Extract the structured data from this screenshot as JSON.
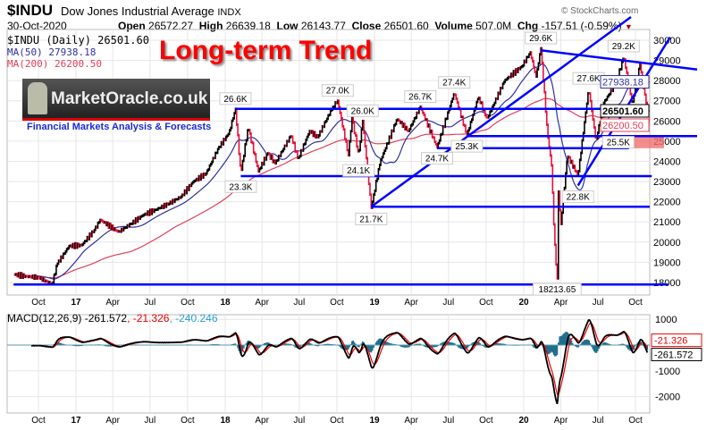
{
  "header": {
    "symbol": "$INDU",
    "name": "Dow Jones Industrial Average",
    "exchange": "INDX",
    "date": "30-Oct-2020",
    "open_label": "Open",
    "open": "26572.27",
    "high_label": "High",
    "high": "26639.18",
    "low_label": "Low",
    "low": "26143.77",
    "close_label": "Close",
    "close": "26501.60",
    "volume_label": "Volume",
    "volume": "507.0M",
    "chg_label": "Chg",
    "chg": "-157.51 (-0.59%)",
    "copyright": "© StockCharts.com"
  },
  "annotation_title": "Long-term Trend",
  "logo": {
    "text": "MarketOracle.co.uk",
    "tagline": "Financial Markets Analysis & Forecasts"
  },
  "colors": {
    "price": "#000000",
    "down": "#e8103a",
    "ma50": "#3030a0",
    "ma200": "#e0405a",
    "trend": "#0000ff",
    "hist": "#1f6e8c",
    "title": "#ff0000"
  },
  "chart_data": [
    {
      "type": "line",
      "title": "$INDU (Daily) 26501.60",
      "legend": [
        "$INDU (Daily) 26501.60",
        "MA(50) 27938.18",
        "MA(200) 26200.50"
      ],
      "ylim": [
        17500,
        30500
      ],
      "yticks": [
        30000,
        29000,
        28000,
        27000,
        26000,
        25000,
        24000,
        23000,
        22000,
        21000,
        20000,
        19000,
        18000
      ],
      "xticks": [
        [
          "2016-10-01",
          "Oct"
        ],
        [
          "2017-01-01",
          "17"
        ],
        [
          "2017-04-01",
          "Apr"
        ],
        [
          "2017-07-01",
          "Jul"
        ],
        [
          "2017-10-01",
          "Oct"
        ],
        [
          "2018-01-01",
          "18"
        ],
        [
          "2018-04-01",
          "Apr"
        ],
        [
          "2018-07-01",
          "Jul"
        ],
        [
          "2018-10-01",
          "Oct"
        ],
        [
          "2019-01-01",
          "19"
        ],
        [
          "2019-04-01",
          "Apr"
        ],
        [
          "2019-07-01",
          "Jul"
        ],
        [
          "2019-10-01",
          "Oct"
        ],
        [
          "2020-01-01",
          "20"
        ],
        [
          "2020-04-01",
          "Apr"
        ],
        [
          "2020-07-01",
          "Jul"
        ],
        [
          "2020-10-01",
          "Oct"
        ]
      ],
      "series": [
        [
          "2016-08-01",
          18400
        ],
        [
          "2016-09-01",
          18300
        ],
        [
          "2016-10-01",
          18250
        ],
        [
          "2016-11-04",
          17900
        ],
        [
          "2016-11-15",
          18900
        ],
        [
          "2016-12-15",
          19800
        ],
        [
          "2017-01-15",
          19850
        ],
        [
          "2017-02-15",
          20600
        ],
        [
          "2017-03-01",
          21100
        ],
        [
          "2017-04-15",
          20500
        ],
        [
          "2017-05-15",
          20900
        ],
        [
          "2017-06-15",
          21350
        ],
        [
          "2017-07-15",
          21600
        ],
        [
          "2017-08-15",
          21900
        ],
        [
          "2017-09-15",
          22250
        ],
        [
          "2017-10-15",
          23000
        ],
        [
          "2017-11-15",
          23400
        ],
        [
          "2017-12-15",
          24650
        ],
        [
          "2018-01-10",
          25400
        ],
        [
          "2018-01-26",
          26600
        ],
        [
          "2018-02-08",
          23400
        ],
        [
          "2018-02-26",
          25700
        ],
        [
          "2018-03-23",
          23500
        ],
        [
          "2018-04-15",
          24400
        ],
        [
          "2018-05-03",
          23900
        ],
        [
          "2018-06-11",
          25300
        ],
        [
          "2018-06-28",
          24100
        ],
        [
          "2018-07-26",
          25500
        ],
        [
          "2018-08-15",
          25200
        ],
        [
          "2018-09-21",
          26700
        ],
        [
          "2018-10-03",
          27000
        ],
        [
          "2018-10-29",
          24300
        ],
        [
          "2018-11-07",
          26200
        ],
        [
          "2018-11-23",
          24300
        ],
        [
          "2018-12-03",
          26000
        ],
        [
          "2018-12-24",
          21700
        ],
        [
          "2019-01-15",
          24000
        ],
        [
          "2019-02-25",
          26100
        ],
        [
          "2019-03-25",
          25500
        ],
        [
          "2019-04-23",
          26700
        ],
        [
          "2019-06-03",
          24700
        ],
        [
          "2019-07-15",
          27400
        ],
        [
          "2019-08-15",
          25300
        ],
        [
          "2019-09-12",
          27200
        ],
        [
          "2019-10-03",
          26100
        ],
        [
          "2019-11-15",
          28000
        ],
        [
          "2019-12-27",
          28700
        ],
        [
          "2020-01-17",
          29400
        ],
        [
          "2020-01-31",
          28200
        ],
        [
          "2020-02-12",
          29600
        ],
        [
          "2020-02-28",
          25400
        ],
        [
          "2020-03-09",
          23800
        ],
        [
          "2020-03-16",
          20200
        ],
        [
          "2020-03-23",
          18200
        ],
        [
          "2020-03-26",
          22500
        ],
        [
          "2020-04-01",
          20900
        ],
        [
          "2020-04-17",
          24300
        ],
        [
          "2020-05-13",
          23300
        ],
        [
          "2020-06-08",
          27600
        ],
        [
          "2020-06-26",
          25000
        ],
        [
          "2020-07-15",
          26900
        ],
        [
          "2020-08-15",
          27900
        ],
        [
          "2020-09-02",
          29200
        ],
        [
          "2020-09-23",
          26800
        ],
        [
          "2020-10-12",
          28850
        ],
        [
          "2020-10-30",
          26500
        ]
      ],
      "tags": {
        "ma50": "27938.18",
        "close": "26501.60",
        "ma200": "26200.50"
      },
      "annotations": [
        [
          "2018-01-26",
          26600,
          "26.6K"
        ],
        [
          "2018-02-08",
          23300,
          "23.3K"
        ],
        [
          "2018-10-03",
          27000,
          "27.0K"
        ],
        [
          "2018-12-03",
          26000,
          "26.0K"
        ],
        [
          "2018-11-23",
          24100,
          "24.1K"
        ],
        [
          "2018-12-24",
          21700,
          "21.7K"
        ],
        [
          "2019-04-23",
          26700,
          "26.7K"
        ],
        [
          "2019-07-15",
          27400,
          "27.4K"
        ],
        [
          "2019-06-03",
          24700,
          "24.7K"
        ],
        [
          "2019-08-15",
          25300,
          "25.3K"
        ],
        [
          "2020-02-12",
          29600,
          "29.6K"
        ],
        [
          "2020-06-08",
          27600,
          "27.6K"
        ],
        [
          "2020-09-02",
          29200,
          "29.2K"
        ],
        [
          "2020-08-20",
          25500,
          "25.5K"
        ],
        [
          "2020-05-13",
          22800,
          "22.8K"
        ],
        [
          "2020-03-23",
          18213.65,
          "18213.65"
        ]
      ],
      "trendlines": [
        [
          [
            "2018-01-26",
            26600
          ],
          [
            "2020-10-20",
            26600
          ]
        ],
        [
          [
            "2019-08-15",
            25250
          ],
          [
            "2021-03-01",
            25250
          ]
        ],
        [
          [
            "2019-06-03",
            24650
          ],
          [
            "2020-09-15",
            24650
          ]
        ],
        [
          [
            "2018-02-08",
            23270
          ],
          [
            "2020-11-10",
            23270
          ]
        ],
        [
          [
            "2018-12-24",
            21750
          ],
          [
            "2020-11-05",
            21750
          ]
        ],
        [
          [
            "2016-08-01",
            17900
          ],
          [
            "2020-12-20",
            17900
          ]
        ],
        [
          [
            "2018-12-24",
            21750
          ],
          [
            "2020-09-20",
            31150
          ]
        ],
        [
          [
            "2020-05-13",
            22800
          ],
          [
            "2020-12-25",
            30150
          ]
        ],
        [
          [
            "2020-02-12",
            29500
          ],
          [
            "2021-03-01",
            28550
          ]
        ]
      ],
      "zone": [
        [
          "2020-08-25",
          "2020-12-10"
        ],
        [
          24650,
          25250
        ]
      ]
    },
    {
      "type": "line",
      "title": "MACD(12,26,9)",
      "legend": [
        "MACD(12,26,9) -261.572",
        ", -21.326",
        ", -240.246"
      ],
      "macd": "-261.572",
      "signal": "-21.326",
      "histogram": "-240.246",
      "ylim": [
        -2500,
        1300
      ],
      "yticks": [
        1000,
        -1000,
        -2000
      ],
      "tags": {
        "signal": "-21.326",
        "macd": "-261.572"
      }
    }
  ]
}
